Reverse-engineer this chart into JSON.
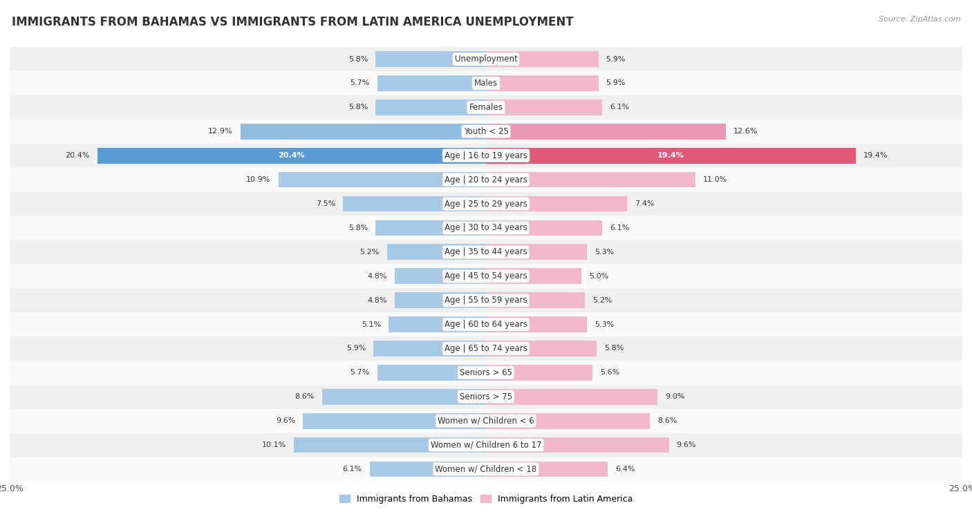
{
  "title": "IMMIGRANTS FROM BAHAMAS VS IMMIGRANTS FROM LATIN AMERICA UNEMPLOYMENT",
  "source": "Source: ZipAtlas.com",
  "categories": [
    "Unemployment",
    "Males",
    "Females",
    "Youth < 25",
    "Age | 16 to 19 years",
    "Age | 20 to 24 years",
    "Age | 25 to 29 years",
    "Age | 30 to 34 years",
    "Age | 35 to 44 years",
    "Age | 45 to 54 years",
    "Age | 55 to 59 years",
    "Age | 60 to 64 years",
    "Age | 65 to 74 years",
    "Seniors > 65",
    "Seniors > 75",
    "Women w/ Children < 6",
    "Women w/ Children 6 to 17",
    "Women w/ Children < 18"
  ],
  "bahamas_values": [
    5.8,
    5.7,
    5.8,
    12.9,
    20.4,
    10.9,
    7.5,
    5.8,
    5.2,
    4.8,
    4.8,
    5.1,
    5.9,
    5.7,
    8.6,
    9.6,
    10.1,
    6.1
  ],
  "latin_values": [
    5.9,
    5.9,
    6.1,
    12.6,
    19.4,
    11.0,
    7.4,
    6.1,
    5.3,
    5.0,
    5.2,
    5.3,
    5.8,
    5.6,
    9.0,
    8.6,
    9.6,
    6.4
  ],
  "bahamas_color_normal": "#a8c8e8",
  "bahamas_color_youth": "#90bce0",
  "bahamas_color_highlight": "#5b9bd5",
  "latin_color_normal": "#f0b8c8",
  "latin_color_youth": "#e898b0",
  "latin_color_highlight": "#e05878",
  "row_bg_even": "#f0f0f0",
  "row_bg_odd": "#fafafa",
  "xlim": 25.0,
  "bar_height": 0.65,
  "title_fontsize": 12,
  "label_fontsize": 8.5,
  "value_fontsize": 8,
  "legend_fontsize": 9,
  "source_fontsize": 8
}
